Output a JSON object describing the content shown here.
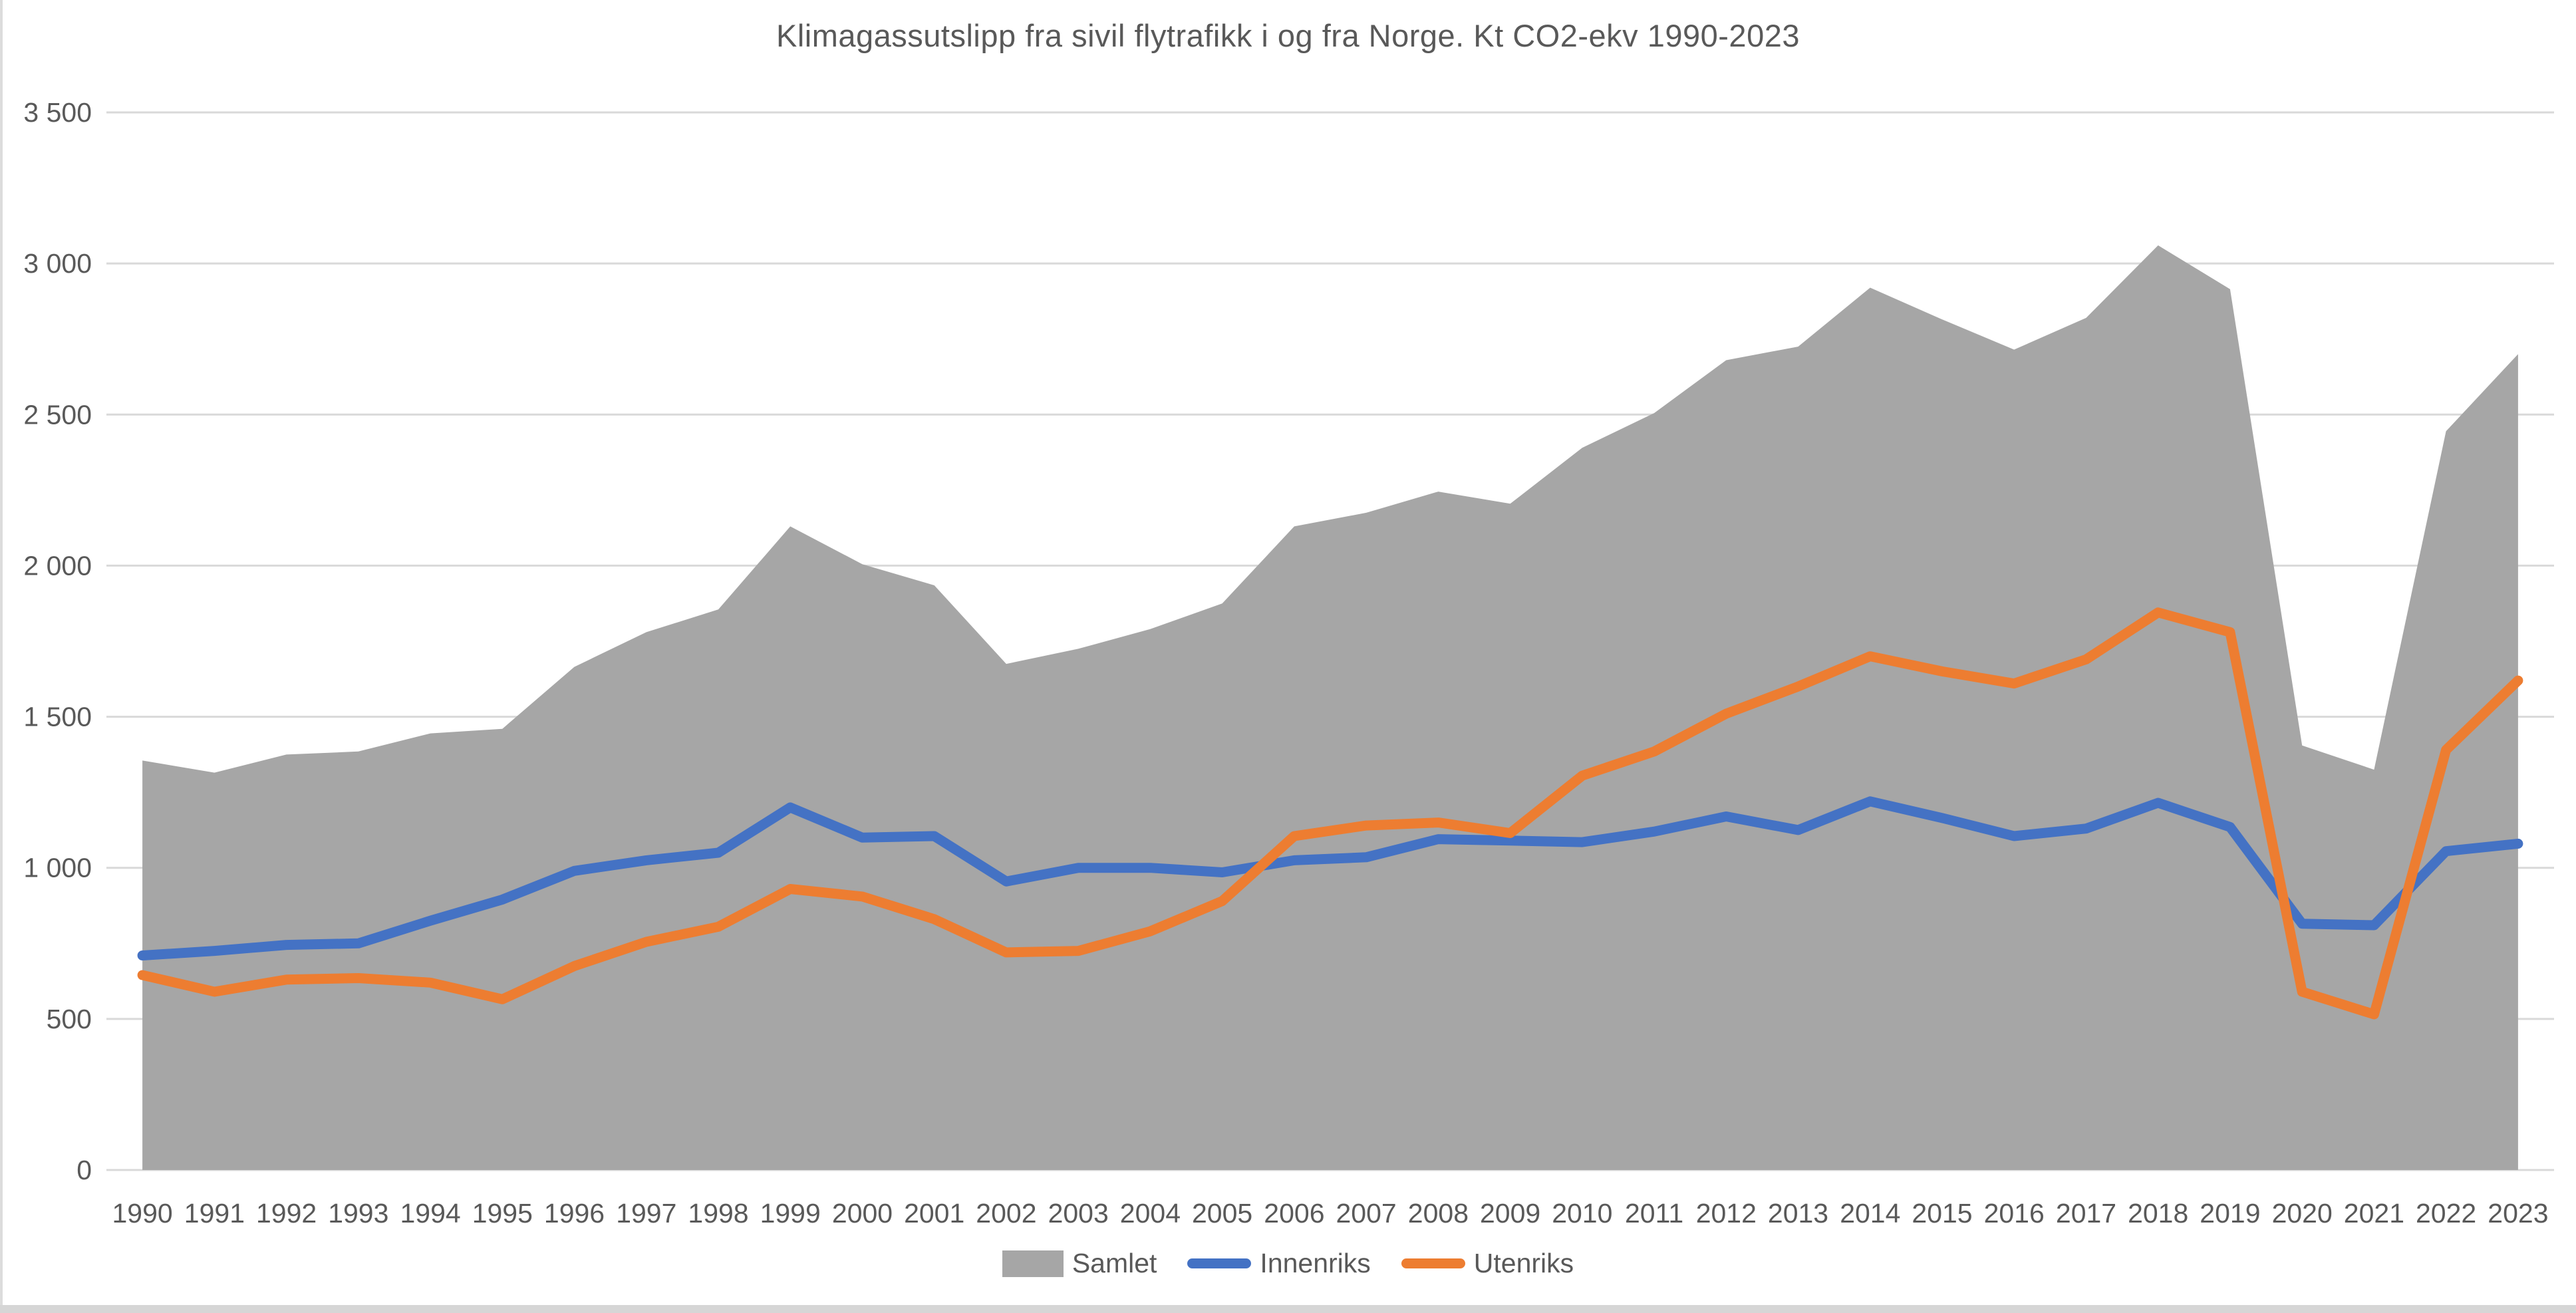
{
  "chart_data": {
    "type": "area",
    "title": "Klimagassutslipp fra sivil flytrafikk i og fra Norge. Kt CO2-ekv 1990-2023",
    "categories": [
      "1990",
      "1991",
      "1992",
      "1993",
      "1994",
      "1995",
      "1996",
      "1997",
      "1998",
      "1999",
      "2000",
      "2001",
      "2002",
      "2003",
      "2004",
      "2005",
      "2006",
      "2007",
      "2008",
      "2009",
      "2010",
      "2011",
      "2012",
      "2013",
      "2014",
      "2015",
      "2016",
      "2017",
      "2018",
      "2019",
      "2020",
      "2021",
      "2022",
      "2023"
    ],
    "series": [
      {
        "name": "Samlet",
        "type": "area",
        "color": "#A6A6A6",
        "values": [
          1355,
          1315,
          1375,
          1385,
          1445,
          1460,
          1665,
          1780,
          1855,
          2130,
          2005,
          1935,
          1675,
          1725,
          1790,
          1875,
          2130,
          2175,
          2245,
          2205,
          2390,
          2505,
          2680,
          2725,
          2920,
          2815,
          2715,
          2820,
          3060,
          2915,
          1405,
          1325,
          2445,
          2700
        ]
      },
      {
        "name": "Innenriks",
        "type": "line",
        "color": "#4472C4",
        "values": [
          710,
          725,
          745,
          750,
          825,
          895,
          990,
          1025,
          1050,
          1200,
          1100,
          1105,
          955,
          1000,
          1000,
          985,
          1025,
          1035,
          1095,
          1090,
          1085,
          1120,
          1170,
          1125,
          1220,
          1165,
          1105,
          1130,
          1215,
          1135,
          815,
          810,
          1055,
          1080
        ]
      },
      {
        "name": "Utenriks",
        "type": "line",
        "color": "#ED7D31",
        "values": [
          645,
          590,
          630,
          635,
          620,
          565,
          675,
          755,
          805,
          930,
          905,
          830,
          720,
          725,
          790,
          890,
          1105,
          1140,
          1150,
          1115,
          1305,
          1385,
          1510,
          1600,
          1700,
          1650,
          1610,
          1690,
          1845,
          1780,
          590,
          515,
          1390,
          1620
        ]
      }
    ],
    "xlabel": "",
    "ylabel": "",
    "ylim": [
      0,
      3500
    ],
    "y_tick_values": [
      0,
      500,
      1000,
      1500,
      2000,
      2500,
      3000,
      3500
    ],
    "y_tick_labels": [
      "0",
      "500",
      "1 000",
      "1 500",
      "2 000",
      "2 500",
      "3 000",
      "3 500"
    ],
    "grid": true,
    "legend_position": "bottom",
    "gridline_color": "#D9D9D9",
    "text_color": "#595959"
  }
}
